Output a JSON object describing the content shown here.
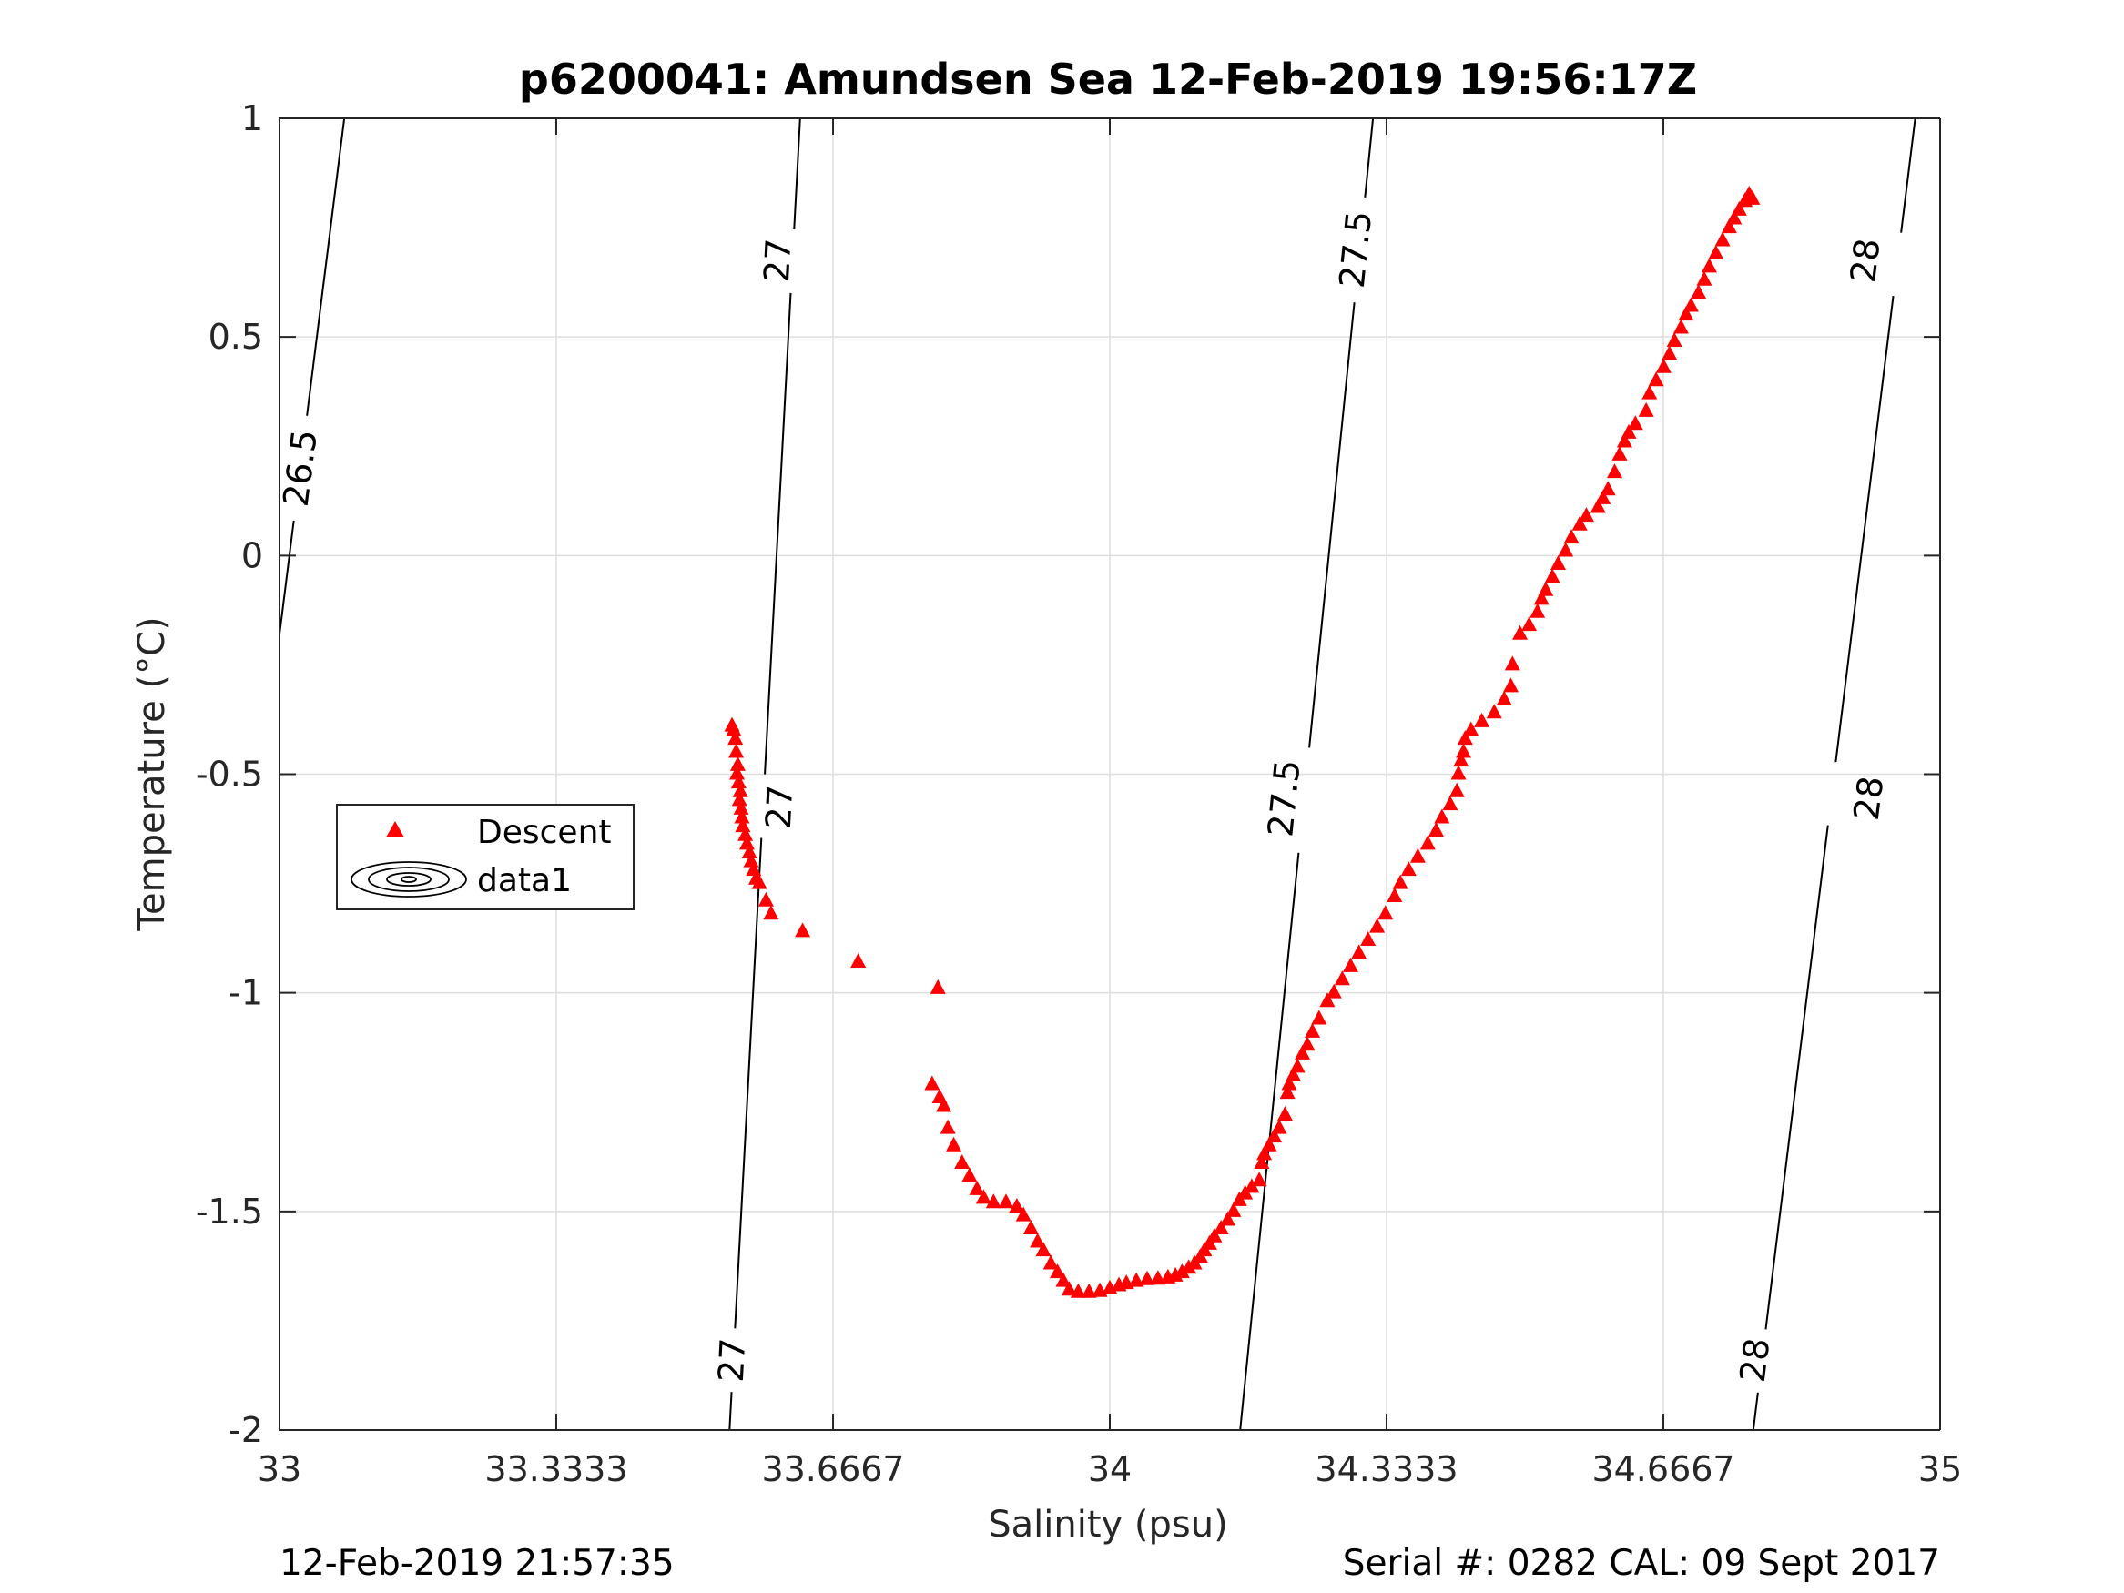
{
  "title": "p6200041: Amundsen Sea 12-Feb-2019 19:56:17Z",
  "footer": {
    "left": "12-Feb-2019 21:57:35",
    "right": "Serial #: 0282  CAL: 09 Sept 2017"
  },
  "chart_data": {
    "type": "scatter",
    "title": "p6200041: Amundsen Sea 12-Feb-2019 19:56:17Z",
    "xlabel": "Salinity (psu)",
    "ylabel": "Temperature (°C)",
    "xlim": [
      33,
      35
    ],
    "ylim": [
      -2,
      1
    ],
    "x_ticks": [
      33,
      33.3333,
      33.6667,
      34,
      34.3333,
      34.6667,
      35
    ],
    "x_tick_labels": [
      "33",
      "33.3333",
      "33.6667",
      "34",
      "34.3333",
      "34.6667",
      "35"
    ],
    "y_ticks": [
      -2,
      -1.5,
      -1,
      -0.5,
      0,
      0.5,
      1
    ],
    "y_tick_labels": [
      "-2",
      "-1.5",
      "-1",
      "-0.5",
      "0",
      "0.5",
      "1"
    ],
    "grid": true,
    "legend": {
      "position": "left",
      "entries": [
        "Descent",
        "data1"
      ]
    },
    "colors": {
      "descent": "#ff0000",
      "contour": "#000000",
      "grid": "#dedede",
      "axis": "#262626"
    },
    "series": [
      {
        "name": "Descent",
        "marker": "triangle",
        "points": [
          [
            33.545,
            -0.39
          ],
          [
            33.547,
            -0.4
          ],
          [
            33.549,
            -0.42
          ],
          [
            33.55,
            -0.45
          ],
          [
            33.552,
            -0.48
          ],
          [
            33.551,
            -0.5
          ],
          [
            33.553,
            -0.52
          ],
          [
            33.555,
            -0.54
          ],
          [
            33.554,
            -0.56
          ],
          [
            33.556,
            -0.58
          ],
          [
            33.557,
            -0.6
          ],
          [
            33.558,
            -0.62
          ],
          [
            33.561,
            -0.64
          ],
          [
            33.563,
            -0.66
          ],
          [
            33.566,
            -0.68
          ],
          [
            33.568,
            -0.7
          ],
          [
            33.571,
            -0.72
          ],
          [
            33.574,
            -0.74
          ],
          [
            33.578,
            -0.75
          ],
          [
            33.586,
            -0.79
          ],
          [
            33.592,
            -0.82
          ],
          [
            33.63,
            -0.86
          ],
          [
            33.697,
            -0.93
          ],
          [
            33.793,
            -0.99
          ],
          [
            33.786,
            -1.21
          ],
          [
            33.795,
            -1.24
          ],
          [
            33.8,
            -1.26
          ],
          [
            33.805,
            -1.31
          ],
          [
            33.812,
            -1.35
          ],
          [
            33.822,
            -1.39
          ],
          [
            33.831,
            -1.42
          ],
          [
            33.84,
            -1.45
          ],
          [
            33.848,
            -1.47
          ],
          [
            33.86,
            -1.48
          ],
          [
            33.875,
            -1.48
          ],
          [
            33.888,
            -1.49
          ],
          [
            33.896,
            -1.51
          ],
          [
            33.905,
            -1.54
          ],
          [
            33.913,
            -1.57
          ],
          [
            33.92,
            -1.59
          ],
          [
            33.929,
            -1.62
          ],
          [
            33.937,
            -1.64
          ],
          [
            33.944,
            -1.66
          ],
          [
            33.951,
            -1.68
          ],
          [
            33.962,
            -1.685
          ],
          [
            33.975,
            -1.685
          ],
          [
            33.988,
            -1.683
          ],
          [
            34.0,
            -1.677
          ],
          [
            34.011,
            -1.67
          ],
          [
            34.02,
            -1.665
          ],
          [
            34.032,
            -1.66
          ],
          [
            34.045,
            -1.656
          ],
          [
            34.058,
            -1.655
          ],
          [
            34.07,
            -1.652
          ],
          [
            34.079,
            -1.648
          ],
          [
            34.087,
            -1.64
          ],
          [
            34.095,
            -1.63
          ],
          [
            34.102,
            -1.62
          ],
          [
            34.109,
            -1.605
          ],
          [
            34.114,
            -1.59
          ],
          [
            34.12,
            -1.575
          ],
          [
            34.126,
            -1.558
          ],
          [
            34.134,
            -1.54
          ],
          [
            34.142,
            -1.52
          ],
          [
            34.149,
            -1.5
          ],
          [
            34.156,
            -1.475
          ],
          [
            34.163,
            -1.46
          ],
          [
            34.171,
            -1.445
          ],
          [
            34.18,
            -1.43
          ],
          [
            34.183,
            -1.39
          ],
          [
            34.186,
            -1.37
          ],
          [
            34.192,
            -1.35
          ],
          [
            34.198,
            -1.33
          ],
          [
            34.204,
            -1.31
          ],
          [
            34.211,
            -1.28
          ],
          [
            34.214,
            -1.23
          ],
          [
            34.216,
            -1.21
          ],
          [
            34.221,
            -1.19
          ],
          [
            34.226,
            -1.17
          ],
          [
            34.232,
            -1.14
          ],
          [
            34.238,
            -1.12
          ],
          [
            34.244,
            -1.09
          ],
          [
            34.252,
            -1.06
          ],
          [
            34.262,
            -1.02
          ],
          [
            34.27,
            -1.0
          ],
          [
            34.28,
            -0.97
          ],
          [
            34.29,
            -0.94
          ],
          [
            34.3,
            -0.91
          ],
          [
            34.311,
            -0.88
          ],
          [
            34.322,
            -0.85
          ],
          [
            34.332,
            -0.82
          ],
          [
            34.343,
            -0.78
          ],
          [
            34.35,
            -0.75
          ],
          [
            34.36,
            -0.72
          ],
          [
            34.371,
            -0.69
          ],
          [
            34.383,
            -0.66
          ],
          [
            34.393,
            -0.63
          ],
          [
            34.4,
            -0.6
          ],
          [
            34.41,
            -0.57
          ],
          [
            34.418,
            -0.54
          ],
          [
            34.42,
            -0.5
          ],
          [
            34.423,
            -0.47
          ],
          [
            34.426,
            -0.45
          ],
          [
            34.428,
            -0.42
          ],
          [
            34.435,
            -0.4
          ],
          [
            34.448,
            -0.38
          ],
          [
            34.463,
            -0.36
          ],
          [
            34.475,
            -0.33
          ],
          [
            34.483,
            -0.3
          ],
          [
            34.485,
            -0.25
          ],
          [
            34.494,
            -0.18
          ],
          [
            34.505,
            -0.16
          ],
          [
            34.515,
            -0.13
          ],
          [
            34.52,
            -0.1
          ],
          [
            34.525,
            -0.08
          ],
          [
            34.533,
            -0.05
          ],
          [
            34.54,
            -0.02
          ],
          [
            34.549,
            0.01
          ],
          [
            34.556,
            0.04
          ],
          [
            34.566,
            0.07
          ],
          [
            34.574,
            0.09
          ],
          [
            34.588,
            0.11
          ],
          [
            34.594,
            0.13
          ],
          [
            34.6,
            0.15
          ],
          [
            34.608,
            0.19
          ],
          [
            34.614,
            0.23
          ],
          [
            34.62,
            0.26
          ],
          [
            34.625,
            0.28
          ],
          [
            34.633,
            0.3
          ],
          [
            34.646,
            0.33
          ],
          [
            34.65,
            0.37
          ],
          [
            34.658,
            0.4
          ],
          [
            34.667,
            0.43
          ],
          [
            34.674,
            0.46
          ],
          [
            34.68,
            0.49
          ],
          [
            34.688,
            0.52
          ],
          [
            34.694,
            0.55
          ],
          [
            34.7,
            0.57
          ],
          [
            34.709,
            0.6
          ],
          [
            34.716,
            0.63
          ],
          [
            34.722,
            0.66
          ],
          [
            34.73,
            0.69
          ],
          [
            34.738,
            0.72
          ],
          [
            34.746,
            0.75
          ],
          [
            34.752,
            0.77
          ],
          [
            34.758,
            0.79
          ],
          [
            34.765,
            0.81
          ],
          [
            34.77,
            0.825
          ],
          [
            34.774,
            0.815
          ]
        ]
      },
      {
        "name": "data1",
        "type": "contour",
        "levels": [
          26.5,
          27,
          27.5,
          28
        ],
        "lines": [
          {
            "level": 26.5,
            "points": [
              [
                33.0,
                -0.18
              ],
              [
                33.078,
                1.0
              ]
            ],
            "labels": [
              [
                33.025,
                0.2
              ]
            ]
          },
          {
            "level": 27,
            "points": [
              [
                33.542,
                -2.0
              ],
              [
                33.627,
                1.0
              ]
            ],
            "labels": [
              [
                33.545,
                -1.84
              ],
              [
                33.6,
                0.675
              ],
              [
                33.602,
                -0.575
              ]
            ]
          },
          {
            "level": 27.5,
            "points": [
              [
                34.157,
                -2.0
              ],
              [
                34.317,
                1.0
              ]
            ],
            "labels": [
              [
                34.21,
                -0.555
              ],
              [
                34.296,
                0.7
              ]
            ]
          },
          {
            "level": 28,
            "points": [
              [
                34.775,
                -2.0
              ],
              [
                34.97,
                1.0
              ]
            ],
            "labels": [
              [
                34.777,
                -1.84
              ],
              [
                34.91,
                0.675
              ],
              [
                34.914,
                -0.555
              ]
            ]
          }
        ]
      }
    ]
  }
}
